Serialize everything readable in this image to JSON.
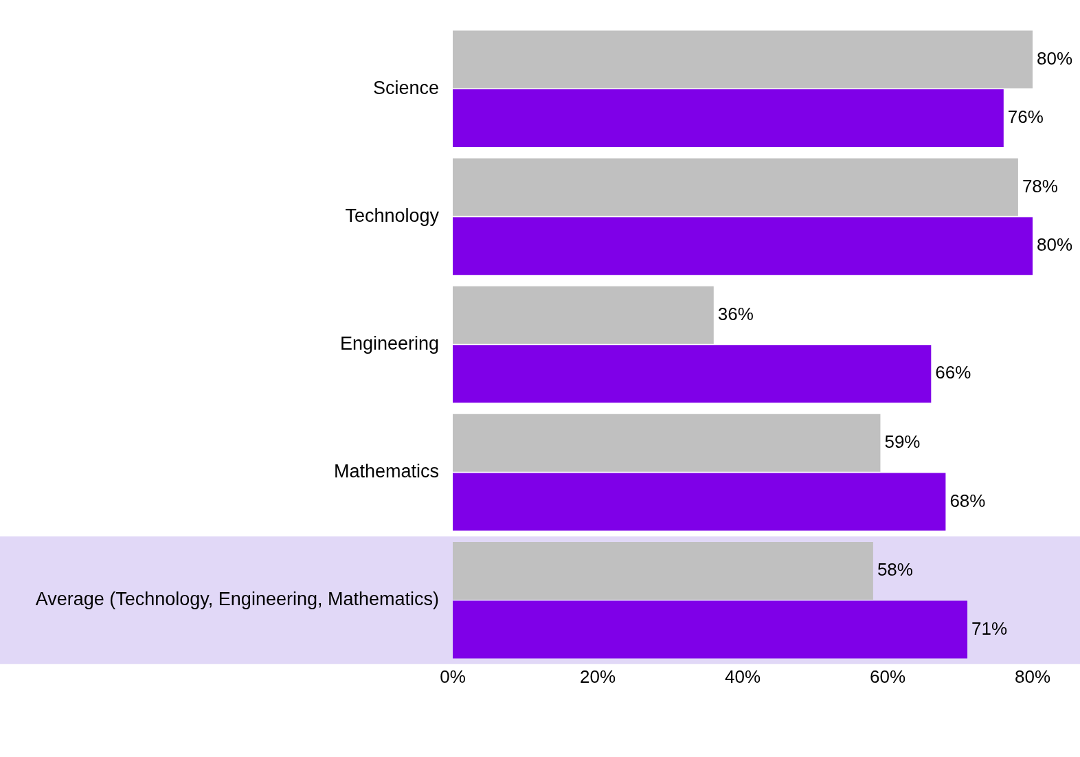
{
  "chart_data": {
    "type": "bar",
    "orientation": "horizontal",
    "categories": [
      "Science",
      "Technology",
      "Engineering",
      "Mathematics",
      "Average (Technology, Engineering, Mathematics)"
    ],
    "series": [
      {
        "color": "#c0c0c0",
        "values": [
          80,
          78,
          36,
          59,
          58
        ],
        "value_labels": [
          "80%",
          "78%",
          "36%",
          "59%",
          "58%"
        ]
      },
      {
        "color": "#7f00e8",
        "values": [
          76,
          80,
          66,
          68,
          71
        ],
        "value_labels": [
          "76%",
          "80%",
          "66%",
          "68%",
          "71%"
        ]
      }
    ],
    "xlim": [
      0,
      80
    ],
    "xticks": [
      {
        "value": 0,
        "label": "0%"
      },
      {
        "value": 20,
        "label": "20%"
      },
      {
        "value": 40,
        "label": "40%"
      },
      {
        "value": 60,
        "label": "60%"
      },
      {
        "value": 80,
        "label": "80%"
      }
    ],
    "bands": [
      {
        "axis": "y",
        "from": "Average (Technology, Engineering, Mathematics)",
        "to": "Average (Technology, Engineering, Mathematics)",
        "color": "#e1d8f7"
      }
    ],
    "grid": false,
    "legend": false
  }
}
